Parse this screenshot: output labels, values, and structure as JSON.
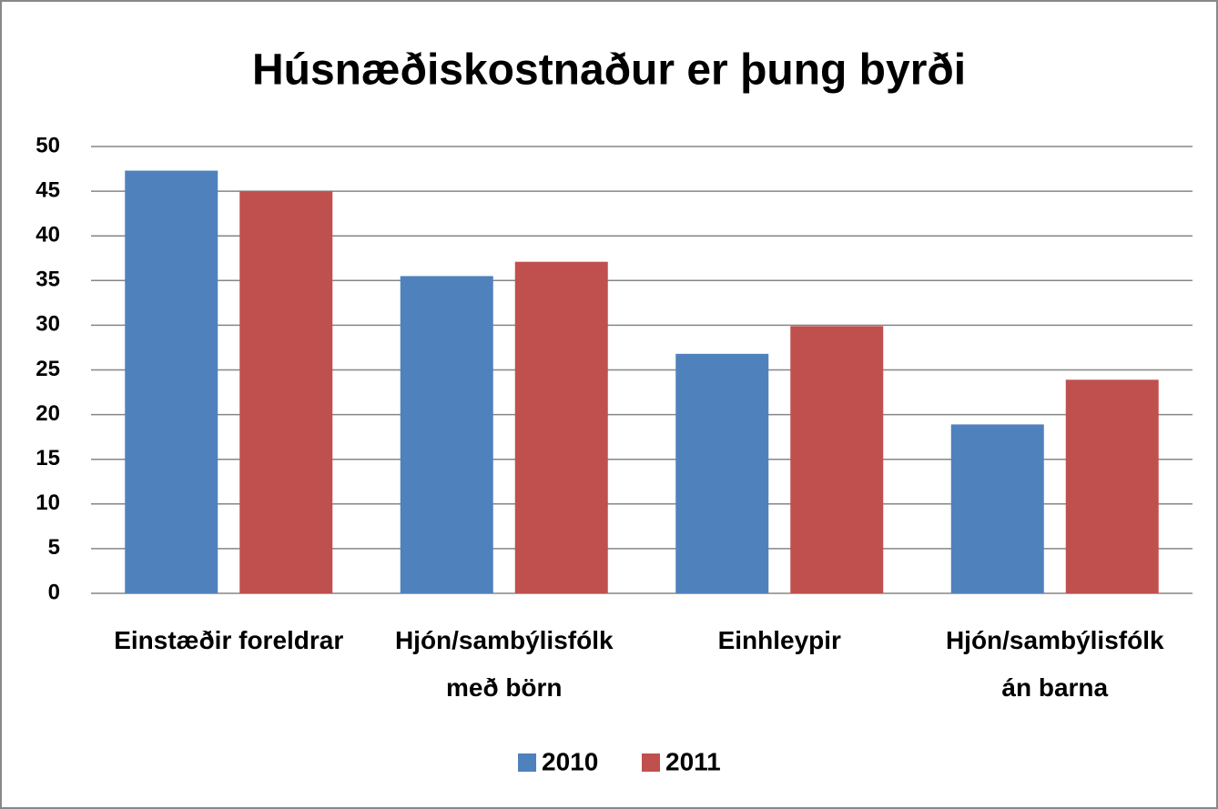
{
  "chart_data": {
    "type": "bar",
    "title": "Húsnæðiskostnaður er þung byrði",
    "categories": [
      "Einstæðir foreldrar",
      "Hjón/sambýlisfólk\nmeð börn",
      "Einhleypir",
      "Hjón/sambýlisfólk\nán barna"
    ],
    "series": [
      {
        "name": "2010",
        "color": "#4f81bd",
        "values": [
          47.3,
          35.5,
          26.8,
          18.9
        ]
      },
      {
        "name": "2011",
        "color": "#c0504d",
        "values": [
          45,
          37.1,
          29.9,
          23.9
        ]
      }
    ],
    "ylim": [
      0,
      50
    ],
    "yticks": [
      0,
      5,
      10,
      15,
      20,
      25,
      30,
      35,
      40,
      45,
      50
    ],
    "grid": true,
    "legend": "bottom"
  }
}
